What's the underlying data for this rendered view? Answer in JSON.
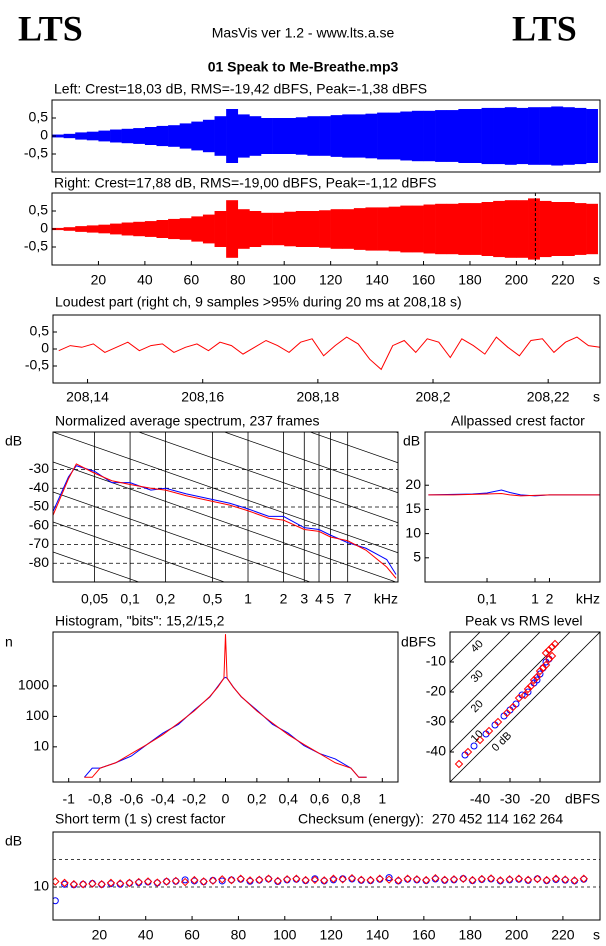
{
  "header": {
    "logo_left": "LTS",
    "app": "MasVis ver 1.2 - www.lts.a.se",
    "logo_right": "LTS",
    "file": "01 Speak to Me-Breathe.mp3"
  },
  "chart_data": [
    {
      "type": "waveform",
      "title": "Left: Crest=18,03 dB, RMS=-19,42 dBFS, Peak=-1,38 dBFS",
      "x": [
        0,
        5,
        10,
        15,
        20,
        25,
        30,
        35,
        40,
        45,
        50,
        55,
        60,
        65,
        70,
        75,
        80,
        85,
        90,
        95,
        100,
        105,
        110,
        115,
        120,
        125,
        130,
        135,
        140,
        145,
        150,
        155,
        160,
        165,
        170,
        175,
        180,
        185,
        190,
        195,
        200,
        205,
        210,
        215,
        220,
        225,
        230
      ],
      "series": [
        {
          "color": "#0000ff",
          "values": [
            0.04,
            0.06,
            0.1,
            0.12,
            0.15,
            0.18,
            0.2,
            0.22,
            0.25,
            0.28,
            0.3,
            0.35,
            0.4,
            0.45,
            0.55,
            0.75,
            0.6,
            0.55,
            0.5,
            0.5,
            0.5,
            0.52,
            0.55,
            0.55,
            0.58,
            0.6,
            0.6,
            0.62,
            0.65,
            0.65,
            0.68,
            0.7,
            0.7,
            0.72,
            0.72,
            0.75,
            0.75,
            0.78,
            0.78,
            0.8,
            0.78,
            0.8,
            0.8,
            0.82,
            0.8,
            0.78,
            0.75
          ]
        }
      ],
      "xlim": [
        0,
        236
      ],
      "ylim": [
        -1,
        1
      ],
      "yticks": [
        {
          "value": 0.5,
          "label": "0,5"
        },
        0,
        {
          "value": -0.5,
          "label": "-0,5"
        }
      ]
    },
    {
      "type": "waveform",
      "title": "Right: Crest=17,88 dB, RMS=-19,00 dBFS, Peak=-1,12 dBFS",
      "x": [
        0,
        5,
        10,
        15,
        20,
        25,
        30,
        35,
        40,
        45,
        50,
        55,
        60,
        65,
        70,
        75,
        80,
        85,
        90,
        95,
        100,
        105,
        110,
        115,
        120,
        125,
        130,
        135,
        140,
        145,
        150,
        155,
        160,
        165,
        170,
        175,
        180,
        185,
        190,
        195,
        200,
        205,
        210,
        215,
        220,
        225,
        230
      ],
      "series": [
        {
          "color": "#ff0000",
          "values": [
            0.03,
            0.05,
            0.08,
            0.1,
            0.12,
            0.15,
            0.18,
            0.2,
            0.22,
            0.25,
            0.28,
            0.3,
            0.35,
            0.4,
            0.5,
            0.8,
            0.55,
            0.5,
            0.45,
            0.45,
            0.48,
            0.5,
            0.5,
            0.52,
            0.55,
            0.55,
            0.58,
            0.6,
            0.6,
            0.62,
            0.65,
            0.65,
            0.68,
            0.7,
            0.7,
            0.72,
            0.72,
            0.75,
            0.78,
            0.8,
            0.8,
            0.85,
            0.78,
            0.75,
            0.75,
            0.72,
            0.7
          ]
        }
      ],
      "xlim": [
        0,
        236
      ],
      "ylim": [
        -1,
        1
      ],
      "yticks": [
        {
          "value": 0.5,
          "label": "0,5"
        },
        0,
        {
          "value": -0.5,
          "label": "-0,5"
        }
      ],
      "xticks": [
        20,
        40,
        60,
        80,
        100,
        120,
        140,
        160,
        180,
        200,
        220
      ],
      "xlabel": "s",
      "marker": 208.18
    },
    {
      "type": "line",
      "title": "Loudest part (right ch, 9 samples >95% during 20 ms at 208,18 s)",
      "x": [
        208.135,
        208.137,
        208.139,
        208.141,
        208.143,
        208.145,
        208.147,
        208.149,
        208.151,
        208.153,
        208.155,
        208.157,
        208.159,
        208.161,
        208.163,
        208.165,
        208.167,
        208.169,
        208.171,
        208.173,
        208.175,
        208.177,
        208.179,
        208.181,
        208.183,
        208.185,
        208.187,
        208.189,
        208.191,
        208.193,
        208.195,
        208.197,
        208.199,
        208.201,
        208.203,
        208.205,
        208.207,
        208.209,
        208.211,
        208.213,
        208.215,
        208.217,
        208.219,
        208.221,
        208.223,
        208.225,
        208.227,
        208.229
      ],
      "series": [
        {
          "color": "#ff0000",
          "values": [
            -0.05,
            0.1,
            0.05,
            0.15,
            -0.1,
            0.05,
            0.2,
            -0.05,
            0.1,
            0.15,
            -0.1,
            0.05,
            0.15,
            -0.05,
            0.2,
            0.1,
            -0.15,
            0.05,
            0.25,
            0.1,
            -0.1,
            0.2,
            0.3,
            -0.2,
            0.1,
            0.35,
            0.15,
            -0.3,
            -0.6,
            0.1,
            0.25,
            -0.1,
            0.3,
            0.2,
            -0.25,
            0.3,
            0.1,
            -0.15,
            0.35,
            0.05,
            -0.2,
            0.25,
            0.3,
            -0.1,
            0.2,
            0.35,
            0.1,
            0.05
          ]
        }
      ],
      "xlim": [
        208.134,
        208.229
      ],
      "ylim": [
        -1,
        1
      ],
      "yticks": [
        {
          "value": 0.5,
          "label": "0,5"
        },
        0,
        {
          "value": -0.5,
          "label": "-0,5"
        }
      ],
      "xticks": [
        {
          "value": 208.14,
          "label": "208,14"
        },
        {
          "value": 208.16,
          "label": "208,16"
        },
        {
          "value": 208.18,
          "label": "208,18"
        },
        {
          "value": 208.2,
          "label": "208,2"
        },
        {
          "value": 208.22,
          "label": "208,22"
        }
      ],
      "xlabel": "s"
    },
    {
      "type": "line",
      "title": "Normalized average spectrum, 237 frames",
      "ylabel": "dB",
      "xlabel": "kHz",
      "xscale": "log",
      "grid": true,
      "x": [
        0.022,
        0.03,
        0.035,
        0.05,
        0.07,
        0.1,
        0.15,
        0.2,
        0.3,
        0.5,
        0.7,
        1,
        1.5,
        2,
        3,
        4,
        5,
        7,
        10,
        15,
        18
      ],
      "series": [
        {
          "color": "#0000ff",
          "values": [
            -53,
            -34,
            -28,
            -31,
            -37,
            -37,
            -41,
            -40,
            -43,
            -46,
            -48,
            -51,
            -55,
            -55,
            -61,
            -62,
            -65,
            -69,
            -72,
            -78,
            -86
          ]
        },
        {
          "color": "#ff0000",
          "values": [
            -55,
            -35,
            -27,
            -32,
            -36,
            -38,
            -40,
            -41,
            -44,
            -47,
            -49,
            -52,
            -56,
            -57,
            -62,
            -63,
            -66,
            -68,
            -73,
            -82,
            -88
          ]
        }
      ],
      "xlim": [
        0.0222,
        18.7
      ],
      "ylim": [
        -90,
        -10
      ],
      "yticks": [
        -30,
        -40,
        -50,
        -60,
        -70,
        -80
      ],
      "xticks": [
        {
          "value": 0.05,
          "label": "0,05"
        },
        {
          "value": 0.1,
          "label": "0,1"
        },
        {
          "value": 0.2,
          "label": "0,2"
        },
        {
          "value": 0.5,
          "label": "0,5"
        },
        1,
        2,
        3,
        4,
        5,
        7
      ]
    },
    {
      "type": "line",
      "title": "Allpassed crest factor",
      "ylabel": "dB",
      "xlabel": "kHz",
      "xscale": "log",
      "x": [
        0.006,
        0.02,
        0.05,
        0.1,
        0.2,
        0.3,
        0.5,
        1,
        2,
        5,
        10,
        22
      ],
      "series": [
        {
          "color": "#0000ff",
          "values": [
            18,
            18.1,
            18.2,
            18.4,
            19,
            18.5,
            18,
            17.8,
            18,
            18,
            18,
            18
          ]
        },
        {
          "color": "#ff0000",
          "values": [
            18,
            18,
            18.1,
            18.2,
            18.3,
            18,
            17.8,
            17.9,
            18,
            18,
            18,
            18
          ]
        }
      ],
      "xlim": [
        0.0051,
        22.6
      ],
      "ylim": [
        0,
        31
      ],
      "yticks": [
        5,
        10,
        15,
        20
      ],
      "xticks": [
        {
          "value": 0.1,
          "label": "0,1"
        },
        1,
        2
      ]
    },
    {
      "type": "line",
      "title": "Histogram, \"bits\": 15,2/15,2",
      "ylabel": "n",
      "yscale": "log",
      "x": [
        -0.9,
        -0.85,
        -0.8,
        -0.7,
        -0.6,
        -0.5,
        -0.4,
        -0.3,
        -0.2,
        -0.1,
        -0.05,
        -0.01,
        0,
        0.01,
        0.05,
        0.1,
        0.2,
        0.3,
        0.4,
        0.5,
        0.6,
        0.7,
        0.8,
        0.85,
        0.9
      ],
      "series": [
        {
          "color": "#0000ff",
          "values": [
            1,
            2,
            2,
            3,
            5,
            12,
            28,
            55,
            160,
            430,
            950,
            1800,
            1900,
            1800,
            920,
            440,
            160,
            55,
            28,
            11,
            6,
            4,
            2,
            1,
            1
          ]
        },
        {
          "color": "#ff0000",
          "values": [
            1,
            1,
            2,
            3,
            6,
            12,
            25,
            60,
            150,
            450,
            900,
            1800,
            50000,
            1800,
            900,
            450,
            150,
            60,
            25,
            12,
            6,
            3,
            2,
            1,
            1
          ]
        }
      ],
      "xlim": [
        -1.1,
        1.1
      ],
      "ylim": [
        0.7,
        59000
      ],
      "yticks": [
        10,
        100,
        1000
      ],
      "xticks": [
        -1,
        {
          "value": -0.8,
          "label": "-0,8"
        },
        {
          "value": -0.6,
          "label": "-0,6"
        },
        {
          "value": -0.4,
          "label": "-0,4"
        },
        {
          "value": -0.2,
          "label": "-0,2"
        },
        0,
        {
          "value": 0.2,
          "label": "0,2"
        },
        {
          "value": 0.4,
          "label": "0,4"
        },
        {
          "value": 0.6,
          "label": "0,6"
        },
        {
          "value": 0.8,
          "label": "0,8"
        },
        1
      ]
    },
    {
      "type": "scatter",
      "title": "Peak vs RMS level",
      "ylabel": "dBFS",
      "xlabel": "dBFS",
      "series": [
        {
          "color": "#0000ff",
          "marker": "circle",
          "x": [
            -45,
            -42,
            -38,
            -35,
            -32,
            -30,
            -28,
            -26,
            -24,
            -22,
            -21,
            -20,
            -19,
            -18,
            -17
          ],
          "values": [
            -41,
            -38,
            -34,
            -31,
            -28,
            -26,
            -24,
            -21,
            -20,
            -17,
            -16,
            -14,
            -12,
            -10,
            -9
          ]
        },
        {
          "color": "#ff0000",
          "marker": "diamond",
          "x": [
            -47,
            -44,
            -40,
            -37,
            -34,
            -31,
            -29,
            -27,
            -25,
            -24,
            -23,
            -22,
            -21,
            -20,
            -19,
            -18,
            -17,
            -16,
            -18,
            -17,
            -16,
            -15
          ],
          "values": [
            -44,
            -40,
            -36,
            -33,
            -30,
            -27,
            -25,
            -22,
            -21,
            -19,
            -18,
            -16,
            -15,
            -13,
            -12,
            -11,
            -9,
            -8,
            -7,
            -6,
            -5,
            -4
          ]
        }
      ],
      "xlim": [
        -50,
        0
      ],
      "ylim": [
        -50,
        0
      ],
      "yticks": [
        -10,
        -20,
        -30,
        -40
      ],
      "xticks": [
        -40,
        -30,
        -20
      ],
      "diagonals": [
        {
          "value": 0,
          "label": "0 dB"
        },
        10,
        20,
        30,
        40
      ]
    },
    {
      "type": "scatter",
      "title": "Short term (1 s) crest factor",
      "annotation": "Checksum (energy):  270 452 114 162 264",
      "ylabel": "dB",
      "xlabel": "s",
      "x": [
        1,
        5,
        9,
        13,
        17,
        21,
        25,
        29,
        33,
        37,
        41,
        45,
        49,
        53,
        57,
        61,
        65,
        69,
        73,
        77,
        81,
        85,
        89,
        93,
        97,
        101,
        105,
        109,
        113,
        117,
        121,
        125,
        129,
        133,
        137,
        141,
        145,
        149,
        153,
        157,
        161,
        165,
        169,
        173,
        177,
        181,
        185,
        189,
        193,
        197,
        201,
        205,
        209,
        213,
        217,
        221,
        225,
        229
      ],
      "series": [
        {
          "color": "#0000ff",
          "marker": "circle",
          "values": [
            5,
            11,
            10.8,
            11,
            11.3,
            10.9,
            11.2,
            11,
            11.4,
            11.6,
            11.8,
            11.5,
            12,
            12.1,
            12.6,
            12.2,
            11.9,
            12.4,
            12.2,
            12.6,
            12.8,
            12.1,
            12.5,
            12.9,
            12,
            12.6,
            12.8,
            12.3,
            13,
            12.2,
            12.6,
            13,
            12.9,
            12.4,
            12.3,
            12.8,
            13.4,
            12.2,
            12.8,
            12.6,
            12.3,
            12.9,
            12.4,
            12.6,
            13.1,
            12.3,
            12.7,
            12.9,
            12.2,
            12.6,
            12.8,
            12.4,
            13,
            12.3,
            12.7,
            12.5,
            12.2,
            12.8
          ]
        },
        {
          "color": "#ff0000",
          "marker": "diamond",
          "values": [
            12,
            11.5,
            11,
            11,
            11.2,
            11,
            11.5,
            11.3,
            11.5,
            11.8,
            12,
            11.6,
            12,
            12.2,
            11.8,
            12.5,
            12,
            12.3,
            12.8,
            12.5,
            13,
            12.4,
            12.6,
            13,
            12.2,
            12.8,
            13,
            12.5,
            12.6,
            12.4,
            13,
            12.8,
            13.2,
            12.6,
            12.5,
            13,
            12.7,
            12.4,
            13,
            12.8,
            12.5,
            13.2,
            12.6,
            12.8,
            13,
            12.5,
            12.9,
            13.1,
            12.4,
            12.8,
            13,
            12.6,
            12.9,
            12.5,
            13,
            12.7,
            12.4,
            13
          ]
        }
      ],
      "xlim": [
        0,
        236
      ],
      "ylim": [
        -2,
        30
      ],
      "yticks": [
        10
      ],
      "hlines": [
        10,
        20
      ],
      "xticks": [
        20,
        40,
        60,
        80,
        100,
        120,
        140,
        160,
        180,
        200,
        220
      ]
    }
  ]
}
